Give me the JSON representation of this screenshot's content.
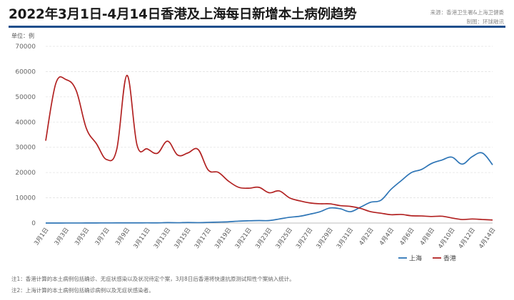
{
  "title": "2022年3月1日-4月14日香港及上海每日新增本土病例趋势",
  "source": {
    "line1": "来源：香港卫生署&上海卫健委",
    "line2": "制图：环球融讯"
  },
  "unit_label": "单位：例",
  "notes": [
    "注1：香港计算的本土病例包括确诊、无症状感染以及状况待定个案，3月8日后香港将快速抗原测试阳性个案纳入统计。",
    "注2：上海计算的本土病例包括确诊病例以及无症状感染者。"
  ],
  "colors": {
    "shanghai": "#2e75b6",
    "hongkong": "#b22222",
    "rule": "#1f4e8c"
  },
  "chart_data": {
    "type": "line",
    "title": "2022年3月1日-4月14日香港及上海每日新增本土病例趋势",
    "ylabel": "单位：例",
    "ylim": [
      0,
      70000
    ],
    "yticks": [
      "0",
      "10000",
      "20000",
      "30000",
      "40000",
      "50000",
      "60000",
      "70000"
    ],
    "ytick_values": [
      0,
      10000,
      20000,
      30000,
      40000,
      50000,
      60000,
      70000
    ],
    "grid": true,
    "legend_position": "bottom-right",
    "x": [
      "3月1日",
      "3月2日",
      "3月3日",
      "3月4日",
      "3月5日",
      "3月6日",
      "3月7日",
      "3月8日",
      "3月9日",
      "3月10日",
      "3月11日",
      "3月12日",
      "3月13日",
      "3月14日",
      "3月15日",
      "3月16日",
      "3月17日",
      "3月18日",
      "3月19日",
      "3月20日",
      "3月21日",
      "3月22日",
      "3月23日",
      "3月24日",
      "3月25日",
      "3月26日",
      "3月27日",
      "3月28日",
      "3月29日",
      "3月30日",
      "3月31日",
      "4月1日",
      "4月2日",
      "4月3日",
      "4月4日",
      "4月5日",
      "4月6日",
      "4月7日",
      "4月8日",
      "4月9日",
      "4月10日",
      "4月11日",
      "4月12日",
      "4月13日",
      "4月14日"
    ],
    "xticks": [
      "3月1日",
      "3月3日",
      "3月5日",
      "3月7日",
      "3月9日",
      "3月11日",
      "3月13日",
      "3月15日",
      "3月17日",
      "3月19日",
      "3月21日",
      "3月23日",
      "3月25日",
      "3月27日",
      "3月29日",
      "3月31日",
      "4月2日",
      "4月4日",
      "4月6日",
      "4月8日",
      "4月10日",
      "4月12日",
      "4月14日"
    ],
    "series": [
      {
        "name": "上海",
        "color": "#2e75b6",
        "values": [
          5,
          5,
          16,
          14,
          28,
          45,
          51,
          62,
          76,
          75,
          83,
          64,
          169,
          130,
          202,
          158,
          260,
          374,
          492,
          758,
          896,
          981,
          983,
          1609,
          2269,
          2678,
          3500,
          4477,
          5982,
          5653,
          4502,
          6311,
          8226,
          9006,
          13354,
          16766,
          19982,
          21222,
          23624,
          24943,
          26087,
          23342,
          26330,
          27719,
          23073
        ]
      },
      {
        "name": "香港",
        "color": "#b22222",
        "values": [
          32597,
          55353,
          56827,
          52523,
          37529,
          31402,
          25150,
          29272,
          58500,
          30777,
          29381,
          27647,
          32430,
          26908,
          27765,
          29163,
          21000,
          20079,
          16597,
          14149,
          13800,
          14149,
          12001,
          12716,
          9993,
          8798,
          7975,
          7631,
          7600,
          6900,
          6600,
          5800,
          4500,
          3900,
          3300,
          3400,
          2900,
          2800,
          2600,
          2700,
          2000,
          1400,
          1600,
          1400,
          1200
        ]
      }
    ]
  }
}
